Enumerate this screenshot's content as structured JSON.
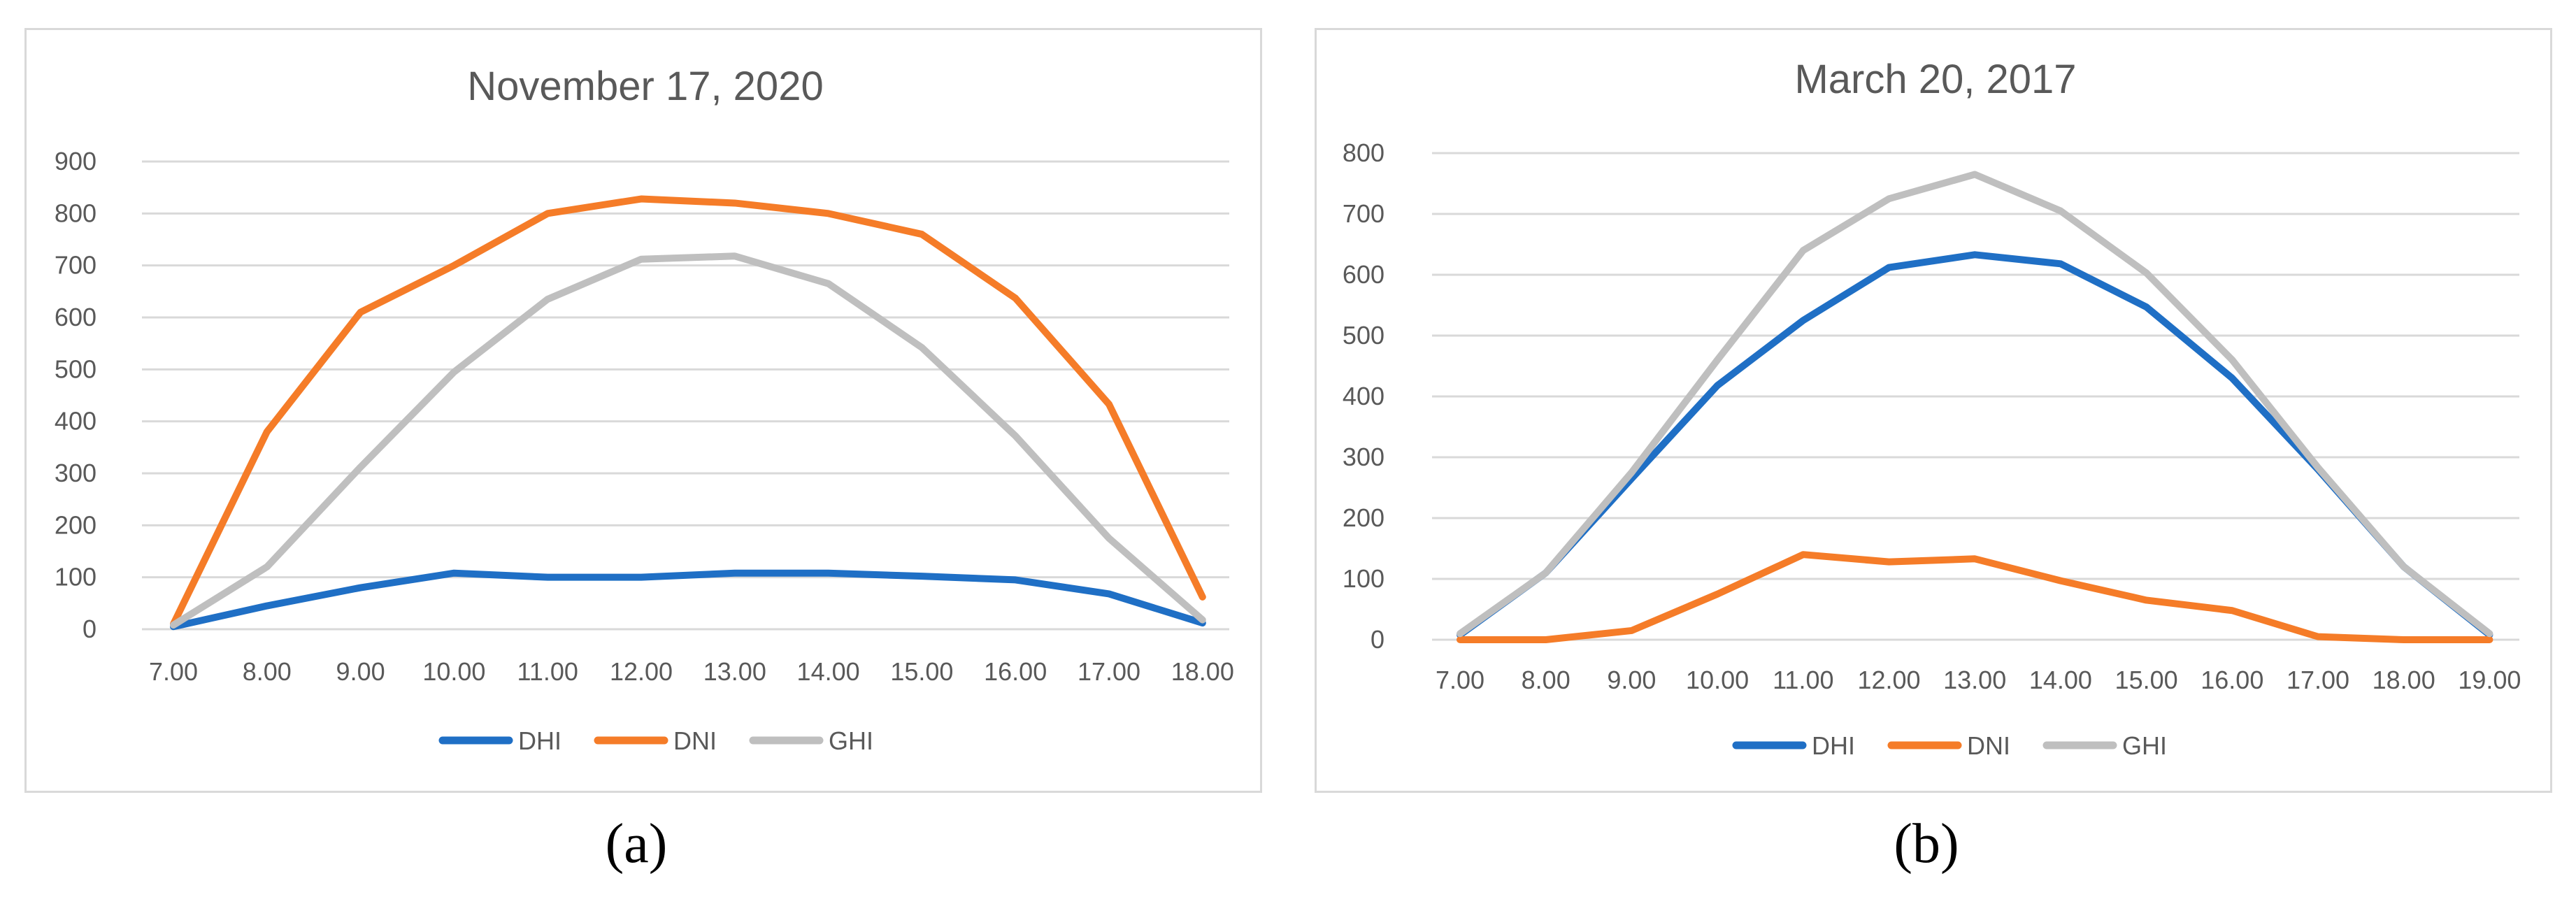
{
  "chart_data": [
    {
      "type": "line",
      "title": "November 17, 2020",
      "caption": "(a)",
      "categories": [
        "7.00",
        "8.00",
        "9.00",
        "10.00",
        "11.00",
        "12.00",
        "13.00",
        "14.00",
        "15.00",
        "16.00",
        "17.00",
        "18.00"
      ],
      "ylim": [
        0,
        900
      ],
      "yticks": [
        0,
        100,
        200,
        300,
        400,
        500,
        600,
        700,
        800,
        900
      ],
      "grid": true,
      "legend": "bottom",
      "series": [
        {
          "name": "DHI",
          "color": "#1f6fc5",
          "values": [
            5,
            45,
            80,
            108,
            100,
            100,
            108,
            108,
            102,
            95,
            68,
            12
          ]
        },
        {
          "name": "DNI",
          "color": "#f57c28",
          "values": [
            10,
            380,
            610,
            700,
            800,
            828,
            820,
            800,
            760,
            637,
            433,
            62
          ]
        },
        {
          "name": "GHI",
          "color": "#bfbfbf",
          "values": [
            8,
            120,
            312,
            495,
            635,
            712,
            718,
            665,
            542,
            372,
            175,
            18
          ]
        }
      ]
    },
    {
      "type": "line",
      "title": "March 20, 2017",
      "caption": "(b)",
      "categories": [
        "7.00",
        "8.00",
        "9.00",
        "10.00",
        "11.00",
        "12.00",
        "13.00",
        "14.00",
        "15.00",
        "16.00",
        "17.00",
        "18.00",
        "19.00"
      ],
      "ylim": [
        0,
        800
      ],
      "yticks": [
        0,
        100,
        200,
        300,
        400,
        500,
        600,
        700,
        800
      ],
      "grid": true,
      "legend": "bottom",
      "series": [
        {
          "name": "DHI",
          "color": "#1f6fc5",
          "values": [
            8,
            110,
            265,
            418,
            525,
            612,
            633,
            618,
            547,
            430,
            280,
            120,
            8
          ]
        },
        {
          "name": "DNI",
          "color": "#f57c28",
          "values": [
            0,
            0,
            15,
            75,
            140,
            128,
            133,
            97,
            65,
            48,
            5,
            0,
            0
          ]
        },
        {
          "name": "GHI",
          "color": "#bfbfbf",
          "values": [
            10,
            110,
            275,
            460,
            640,
            725,
            765,
            705,
            603,
            460,
            283,
            120,
            10
          ]
        }
      ]
    }
  ]
}
